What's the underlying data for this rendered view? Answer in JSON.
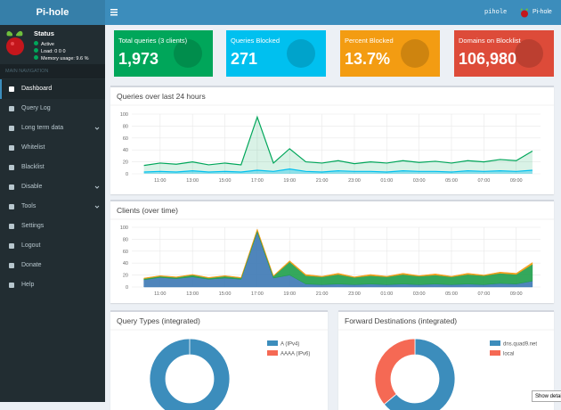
{
  "sidebar": {
    "brand": "Pi-hole",
    "status": {
      "title": "Status",
      "active": "Active",
      "load": "Load:  0  0  0",
      "memory": "Memory usage:  9.6 %"
    },
    "nav_header": "MAIN NAVIGATION",
    "menu": [
      {
        "label": "Dashboard",
        "active": true
      },
      {
        "label": "Query Log"
      },
      {
        "label": "Long term data",
        "expandable": true
      },
      {
        "label": "Whitelist"
      },
      {
        "label": "Blacklist"
      },
      {
        "label": "Disable",
        "expandable": true
      },
      {
        "label": "Tools",
        "expandable": true
      },
      {
        "label": "Settings"
      },
      {
        "label": "Logout"
      },
      {
        "label": "Donate"
      },
      {
        "label": "Help"
      }
    ]
  },
  "topbar": {
    "hostname": "pihole",
    "user": "Pi-hole"
  },
  "stats": [
    {
      "label": "Total queries (3 clients)",
      "value": "1,973",
      "color": "#00a65a"
    },
    {
      "label": "Queries Blocked",
      "value": "271",
      "color": "#00c0ef"
    },
    {
      "label": "Percent Blocked",
      "value": "13.7%",
      "color": "#f39c12"
    },
    {
      "label": "Domains on Blocklist",
      "value": "106,980",
      "color": "#dd4b39"
    }
  ],
  "charts": [
    {
      "type": "line",
      "title": "Queries over last 24 hours",
      "x": [
        10,
        11,
        12,
        13,
        14,
        15,
        16,
        17,
        18,
        19,
        20,
        21,
        22,
        23,
        24,
        25,
        26,
        27,
        28,
        29,
        30,
        31,
        32,
        33,
        34
      ],
      "xlim": [
        9.25,
        34.5
      ],
      "xticks": [
        {
          "value": 11,
          "label": "11:00"
        },
        {
          "value": 13,
          "label": "13:00"
        },
        {
          "value": 15,
          "label": "15:00"
        },
        {
          "value": 17,
          "label": "17:00"
        },
        {
          "value": 19,
          "label": "19:00"
        },
        {
          "value": 21,
          "label": "21:00"
        },
        {
          "value": 23,
          "label": "23:00"
        },
        {
          "value": 25,
          "label": "01:00"
        },
        {
          "value": 27,
          "label": "03:00"
        },
        {
          "value": 29,
          "label": "05:00"
        },
        {
          "value": 31,
          "label": "07:00"
        },
        {
          "value": 33,
          "label": "09:00"
        }
      ],
      "ylim": [
        0,
        100
      ],
      "yticks": [
        0,
        20,
        40,
        60,
        80,
        100
      ],
      "grid": true,
      "series": [
        {
          "color": "#00a65a",
          "fill": "rgba(0,166,90,0.15)",
          "values": [
            14,
            18,
            16,
            20,
            15,
            18,
            15,
            95,
            18,
            42,
            20,
            18,
            22,
            17,
            20,
            18,
            22,
            19,
            21,
            18,
            22,
            20,
            24,
            22,
            38
          ]
        },
        {
          "color": "#00c0ef",
          "fill": "rgba(0,192,239,0.35)",
          "values": [
            3,
            4,
            3,
            5,
            3,
            4,
            3,
            6,
            4,
            8,
            4,
            3,
            5,
            4,
            4,
            3,
            5,
            4,
            4,
            3,
            5,
            4,
            5,
            4,
            6
          ]
        }
      ]
    },
    {
      "type": "stacked_area",
      "title": "Clients (over time)",
      "x": [
        10,
        11,
        12,
        13,
        14,
        15,
        16,
        17,
        18,
        19,
        20,
        21,
        22,
        23,
        24,
        25,
        26,
        27,
        28,
        29,
        30,
        31,
        32,
        33,
        34
      ],
      "xlim": [
        9.25,
        34.5
      ],
      "xticks": [
        {
          "value": 11,
          "label": "11:00"
        },
        {
          "value": 13,
          "label": "13:00"
        },
        {
          "value": 15,
          "label": "15:00"
        },
        {
          "value": 17,
          "label": "17:00"
        },
        {
          "value": 19,
          "label": "19:00"
        },
        {
          "value": 21,
          "label": "21:00"
        },
        {
          "value": 23,
          "label": "23:00"
        },
        {
          "value": 25,
          "label": "01:00"
        },
        {
          "value": 27,
          "label": "03:00"
        },
        {
          "value": 29,
          "label": "05:00"
        },
        {
          "value": 31,
          "label": "07:00"
        },
        {
          "value": 33,
          "label": "09:00"
        }
      ],
      "ylim": [
        0,
        100
      ],
      "yticks": [
        0,
        20,
        40,
        60,
        80,
        100
      ],
      "grid": true,
      "series": [
        {
          "color": "#3c78b4",
          "values": [
            12,
            16,
            14,
            17,
            13,
            15,
            13,
            92,
            15,
            20,
            5,
            4,
            5,
            4,
            5,
            4,
            5,
            4,
            5,
            4,
            5,
            4,
            6,
            5,
            10
          ]
        },
        {
          "color": "#1e9e4a",
          "values": [
            2,
            2,
            2,
            3,
            2,
            3,
            2,
            3,
            3,
            22,
            14,
            13,
            16,
            12,
            14,
            13,
            16,
            14,
            15,
            13,
            16,
            15,
            17,
            16,
            28
          ]
        },
        {
          "color": "#f39c12",
          "values": [
            1,
            1,
            1,
            1,
            1,
            1,
            1,
            2,
            1,
            2,
            2,
            1,
            2,
            1,
            2,
            1,
            2,
            1,
            2,
            1,
            2,
            1,
            2,
            2,
            3
          ]
        }
      ]
    }
  ],
  "donuts": [
    {
      "type": "donut",
      "title": "Query Types (integrated)",
      "categories": [
        "A (IPv4)",
        "AAAA (IPv6)"
      ],
      "values": [
        100,
        0
      ],
      "colors": [
        "#3c8dbc",
        "#f56954"
      ]
    },
    {
      "type": "donut",
      "title": "Forward Destinations (integrated)",
      "categories": [
        "dns.quad9.net",
        "local"
      ],
      "values": [
        64,
        36
      ],
      "colors": [
        "#3c8dbc",
        "#f56954"
      ]
    }
  ],
  "footer_button": "Show details"
}
